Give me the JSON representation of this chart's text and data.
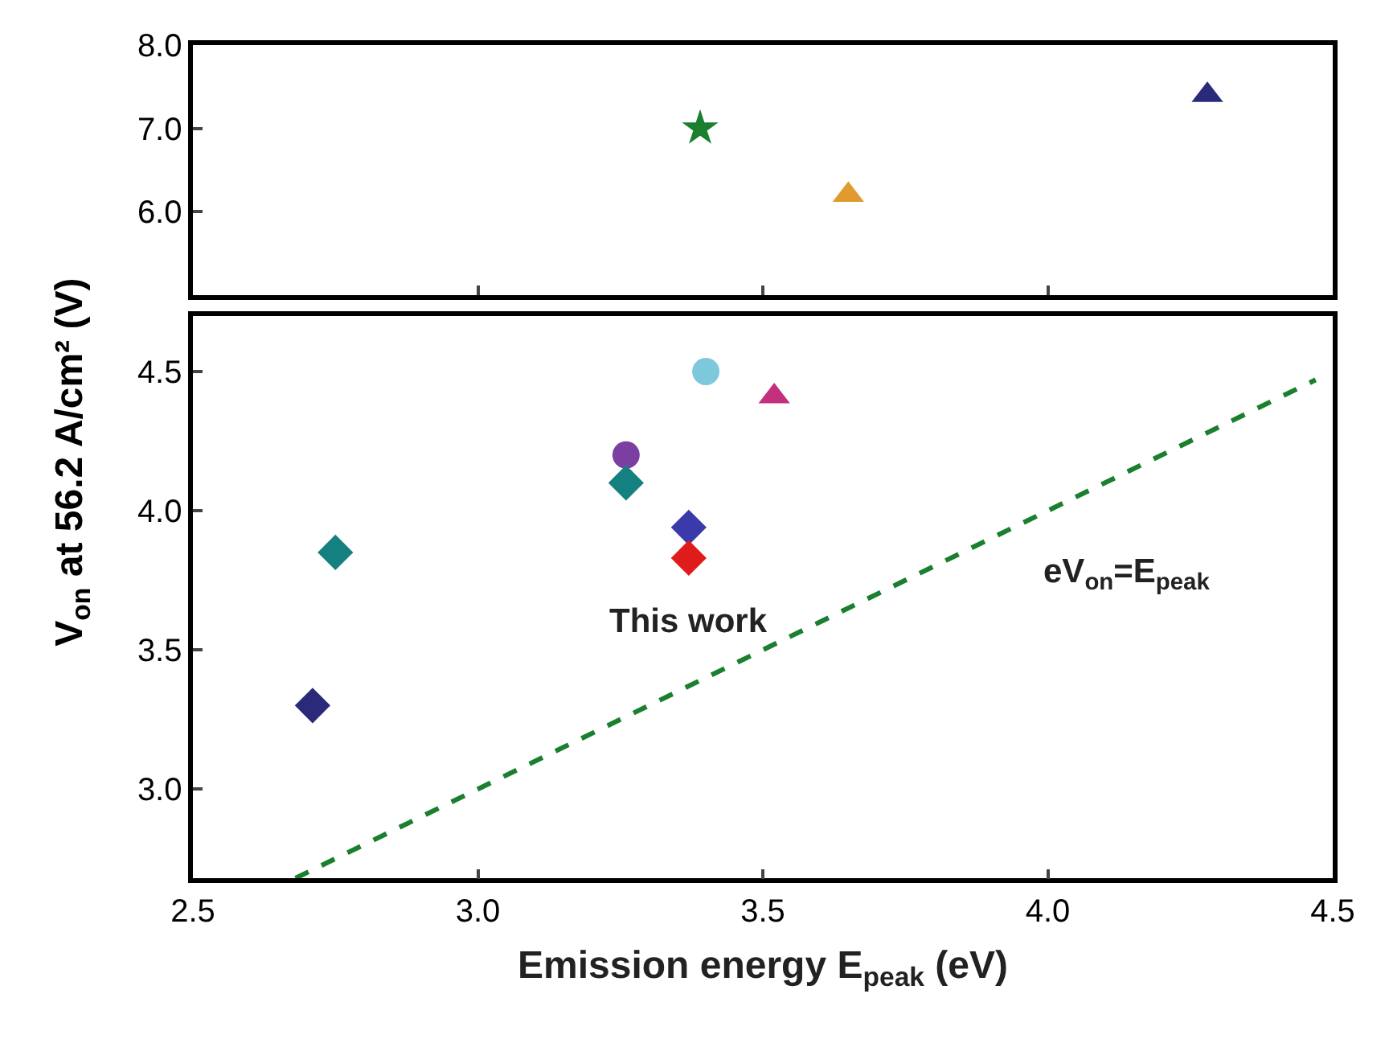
{
  "chart_data": [
    {
      "type": "scatter",
      "xlim": [
        2.5,
        4.5
      ],
      "xticks": [
        2.5,
        3.0,
        3.5,
        4.0,
        4.5
      ],
      "ylim": [
        5.0,
        8.0
      ],
      "yticks": [
        {
          "value": 6,
          "label": "6.0"
        },
        {
          "value": 7,
          "label": "7.0"
        },
        {
          "value": 8,
          "label": "8.0"
        }
      ],
      "tick_labels": "y",
      "series": [
        {
          "x": [
            3.39
          ],
          "values": [
            7.0
          ],
          "color": "#1a7f2e",
          "marker": "star"
        },
        {
          "x": [
            3.65
          ],
          "values": [
            6.2
          ],
          "color": "#e09a2e",
          "marker": "triangle"
        },
        {
          "x": [
            4.28
          ],
          "values": [
            7.4
          ],
          "color": "#2b2a7a",
          "marker": "triangle"
        }
      ]
    },
    {
      "type": "scatter",
      "xlim": [
        2.5,
        4.5
      ],
      "ylim": [
        2.68,
        4.7
      ],
      "yticks": [
        {
          "value": 3,
          "label": "3.0"
        },
        3.5,
        {
          "value": 4,
          "label": "4.0"
        },
        4.5
      ],
      "xticks": [
        2.5,
        {
          "value": 3,
          "label": "3.0"
        },
        3.5,
        {
          "value": 4,
          "label": "4.0"
        },
        4.5
      ],
      "xlabel": "Emission energy E$_{peak}$ (eV)",
      "ylabel": "V$_{on}$ at 56.2 A/cm² (V)",
      "series": [
        {
          "x": [
            3.4
          ],
          "values": [
            4.5
          ],
          "color": "#7ec8dc",
          "marker": "circle"
        },
        {
          "x": [
            3.52
          ],
          "values": [
            4.41
          ],
          "color": "#c2307e",
          "marker": "triangle"
        },
        {
          "x": [
            3.26
          ],
          "values": [
            4.2
          ],
          "color": "#7a3fa0",
          "marker": "circle"
        },
        {
          "x": [
            3.26
          ],
          "values": [
            4.1
          ],
          "color": "#158080",
          "marker": "diamond"
        },
        {
          "x": [
            2.75
          ],
          "values": [
            3.85
          ],
          "color": "#158080",
          "marker": "diamond"
        },
        {
          "x": [
            2.71
          ],
          "values": [
            3.3
          ],
          "color": "#2b2a7a",
          "marker": "diamond"
        },
        {
          "x": [
            3.37
          ],
          "values": [
            3.94
          ],
          "color": "#3a3aaa",
          "marker": "diamond"
        },
        {
          "x": [
            3.37
          ],
          "values": [
            3.83
          ],
          "color": "#e01b1b",
          "marker": "diamond"
        },
        {
          "type": "line",
          "x": [
            2.68,
            4.47
          ],
          "values": [
            2.68,
            4.47
          ],
          "color": "#1a7f2e",
          "line_style": "dashed",
          "marker": "none"
        }
      ],
      "annotations": [
        "This work",
        "eV$_{on}$=E$_{peak}$"
      ]
    }
  ]
}
